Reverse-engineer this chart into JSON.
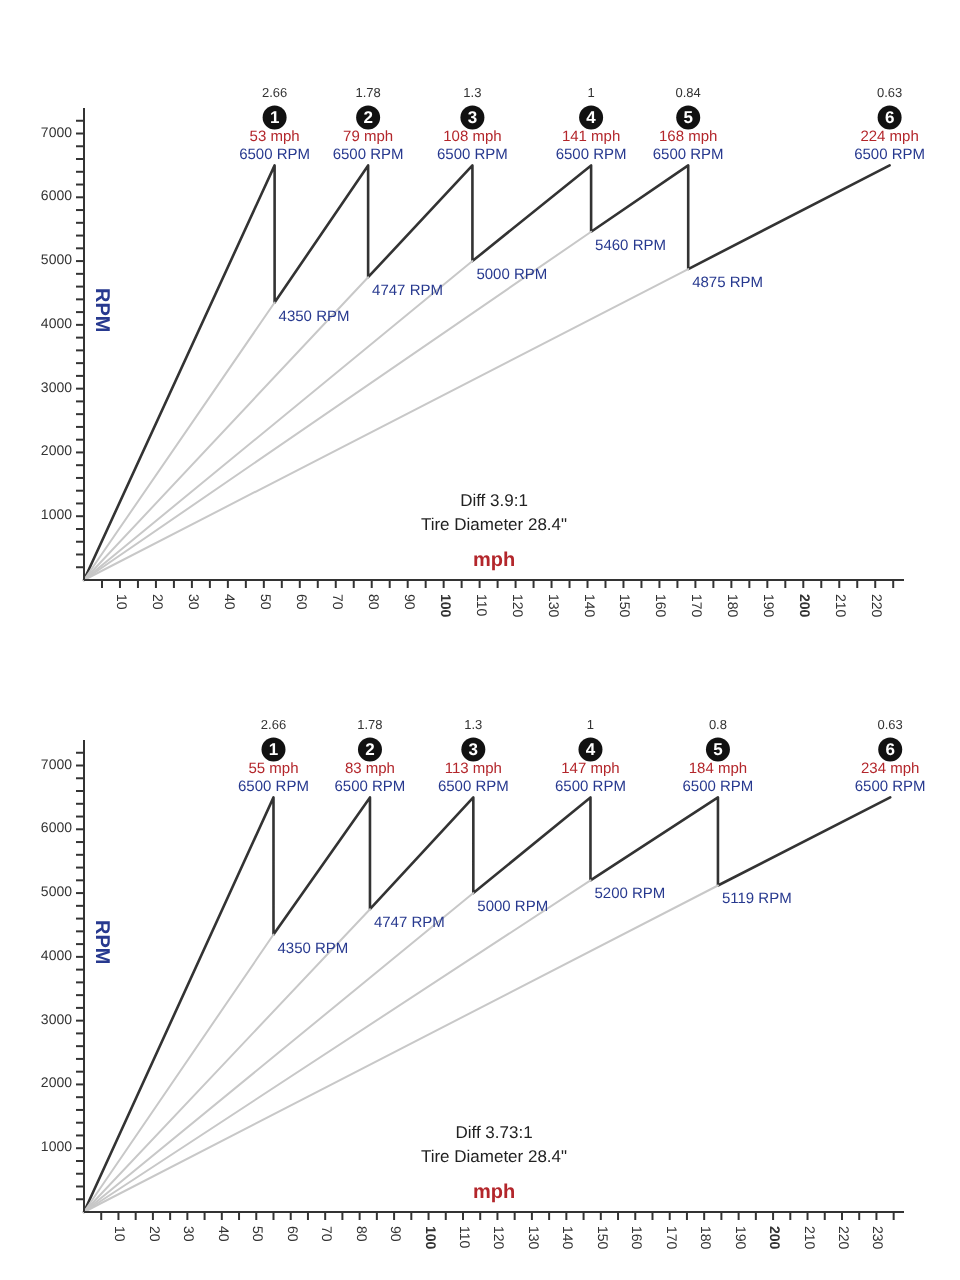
{
  "chart_data": [
    {
      "type": "line",
      "xlabel": "mph",
      "ylabel": "RPM",
      "xlim": [
        0,
        228
      ],
      "ylim": [
        0,
        7400
      ],
      "xticks": [
        {
          "value": 5,
          "label": null
        },
        10,
        {
          "value": 15,
          "label": null
        },
        20,
        {
          "value": 25,
          "label": null
        },
        30,
        {
          "value": 35,
          "label": null
        },
        40,
        {
          "value": 45,
          "label": null
        },
        50,
        {
          "value": 55,
          "label": null
        },
        60,
        {
          "value": 65,
          "label": null
        },
        70,
        {
          "value": 75,
          "label": null
        },
        80,
        {
          "value": 85,
          "label": null
        },
        90,
        {
          "value": 95,
          "label": null
        },
        100,
        {
          "value": 105,
          "label": null
        },
        110,
        {
          "value": 115,
          "label": null
        },
        120,
        {
          "value": 125,
          "label": null
        },
        130,
        {
          "value": 135,
          "label": null
        },
        140,
        {
          "value": 145,
          "label": null
        },
        150,
        {
          "value": 155,
          "label": null
        },
        160,
        {
          "value": 165,
          "label": null
        },
        170,
        {
          "value": 175,
          "label": null
        },
        180,
        {
          "value": 185,
          "label": null
        },
        190,
        {
          "value": 195,
          "label": null
        },
        200,
        {
          "value": 205,
          "label": null
        },
        210,
        {
          "value": 215,
          "label": null
        },
        220,
        {
          "value": 225,
          "label": null
        }
      ],
      "yticks": [
        {
          "value": 200,
          "label": null
        },
        {
          "value": 400,
          "label": null
        },
        {
          "value": 600,
          "label": null
        },
        {
          "value": 800,
          "label": null
        },
        1000,
        {
          "value": 1200,
          "label": null
        },
        {
          "value": 1400,
          "label": null
        },
        {
          "value": 1600,
          "label": null
        },
        {
          "value": 1800,
          "label": null
        },
        2000,
        {
          "value": 2200,
          "label": null
        },
        {
          "value": 2400,
          "label": null
        },
        {
          "value": 2600,
          "label": null
        },
        {
          "value": 2800,
          "label": null
        },
        3000,
        {
          "value": 3200,
          "label": null
        },
        {
          "value": 3400,
          "label": null
        },
        {
          "value": 3600,
          "label": null
        },
        {
          "value": 3800,
          "label": null
        },
        4000,
        {
          "value": 4200,
          "label": null
        },
        {
          "value": 4400,
          "label": null
        },
        {
          "value": 4600,
          "label": null
        },
        {
          "value": 4800,
          "label": null
        },
        5000,
        {
          "value": 5200,
          "label": null
        },
        {
          "value": 5400,
          "label": null
        },
        {
          "value": 5600,
          "label": null
        },
        {
          "value": 5800,
          "label": null
        },
        6000,
        {
          "value": 6200,
          "label": null
        },
        {
          "value": 6400,
          "label": null
        },
        {
          "value": 6600,
          "label": null
        },
        {
          "value": 6800,
          "label": null
        },
        7000,
        {
          "value": 7200,
          "label": null
        }
      ],
      "series": [
        {
          "color": "#333333",
          "x": [
            0,
            53,
            53,
            79,
            79,
            108,
            108,
            141,
            141,
            168,
            168,
            224
          ],
          "values": [
            0,
            6500,
            4350,
            6500,
            4747,
            6500,
            5000,
            6500,
            5460,
            6500,
            4875,
            6500
          ],
          "value_labels": [
            null,
            "6500 RPM",
            "4350 RPM",
            "6500 RPM",
            "4747 RPM",
            "6500 RPM",
            "5000 RPM",
            "6500 RPM",
            "5460 RPM",
            "6500 RPM",
            "4875 RPM",
            "6500 RPM"
          ]
        },
        {
          "color": "#c8c8c8",
          "x": [
            0,
            53
          ],
          "values": [
            0,
            4350
          ]
        },
        {
          "color": "#c8c8c8",
          "x": [
            0,
            79
          ],
          "values": [
            0,
            4747
          ]
        },
        {
          "color": "#c8c8c8",
          "x": [
            0,
            108
          ],
          "values": [
            0,
            5000
          ]
        },
        {
          "color": "#c8c8c8",
          "x": [
            0,
            141
          ],
          "values": [
            0,
            5460
          ]
        },
        {
          "color": "#c8c8c8",
          "x": [
            0,
            168
          ],
          "values": [
            0,
            4875
          ]
        }
      ],
      "annotations": [
        "2.66",
        {
          "text": "1",
          "x": 53,
          "y": 6500
        },
        {
          "text": "53 mph",
          "x": 53,
          "y": 6500
        },
        "1.78",
        {
          "text": "2",
          "x": 79,
          "y": 6500
        },
        {
          "text": "79 mph",
          "x": 79,
          "y": 6500
        },
        "1.3",
        {
          "text": "3",
          "x": 108,
          "y": 6500
        },
        {
          "text": "108 mph",
          "x": 108,
          "y": 6500
        },
        "1",
        {
          "text": "4",
          "x": 141,
          "y": 6500
        },
        {
          "text": "141 mph",
          "x": 141,
          "y": 6500
        },
        "0.84",
        {
          "text": "5",
          "x": 168,
          "y": 6500
        },
        {
          "text": "168 mph",
          "x": 168,
          "y": 6500
        },
        "0.63",
        {
          "text": "6",
          "x": 224,
          "y": 6500
        },
        {
          "text": "224 mph",
          "x": 224,
          "y": 6500
        },
        "Diff 3.9:1",
        "Tire Diameter 28.4\""
      ]
    },
    {
      "type": "line",
      "xlabel": "mph",
      "ylabel": "RPM",
      "xlim": [
        0,
        238
      ],
      "ylim": [
        0,
        7400
      ],
      "xticks": [
        {
          "value": 5,
          "label": null
        },
        10,
        {
          "value": 15,
          "label": null
        },
        20,
        {
          "value": 25,
          "label": null
        },
        30,
        {
          "value": 35,
          "label": null
        },
        40,
        {
          "value": 45,
          "label": null
        },
        50,
        {
          "value": 55,
          "label": null
        },
        60,
        {
          "value": 65,
          "label": null
        },
        70,
        {
          "value": 75,
          "label": null
        },
        80,
        {
          "value": 85,
          "label": null
        },
        90,
        {
          "value": 95,
          "label": null
        },
        100,
        {
          "value": 105,
          "label": null
        },
        110,
        {
          "value": 115,
          "label": null
        },
        120,
        {
          "value": 125,
          "label": null
        },
        130,
        {
          "value": 135,
          "label": null
        },
        140,
        {
          "value": 145,
          "label": null
        },
        150,
        {
          "value": 155,
          "label": null
        },
        160,
        {
          "value": 165,
          "label": null
        },
        170,
        {
          "value": 175,
          "label": null
        },
        180,
        {
          "value": 185,
          "label": null
        },
        190,
        {
          "value": 195,
          "label": null
        },
        200,
        {
          "value": 205,
          "label": null
        },
        210,
        {
          "value": 215,
          "label": null
        },
        220,
        {
          "value": 225,
          "label": null
        },
        230,
        {
          "value": 235,
          "label": null
        }
      ],
      "yticks": [
        {
          "value": 200,
          "label": null
        },
        {
          "value": 400,
          "label": null
        },
        {
          "value": 600,
          "label": null
        },
        {
          "value": 800,
          "label": null
        },
        1000,
        {
          "value": 1200,
          "label": null
        },
        {
          "value": 1400,
          "label": null
        },
        {
          "value": 1600,
          "label": null
        },
        {
          "value": 1800,
          "label": null
        },
        2000,
        {
          "value": 2200,
          "label": null
        },
        {
          "value": 2400,
          "label": null
        },
        {
          "value": 2600,
          "label": null
        },
        {
          "value": 2800,
          "label": null
        },
        3000,
        {
          "value": 3200,
          "label": null
        },
        {
          "value": 3400,
          "label": null
        },
        {
          "value": 3600,
          "label": null
        },
        {
          "value": 3800,
          "label": null
        },
        4000,
        {
          "value": 4200,
          "label": null
        },
        {
          "value": 4400,
          "label": null
        },
        {
          "value": 4600,
          "label": null
        },
        {
          "value": 4800,
          "label": null
        },
        5000,
        {
          "value": 5200,
          "label": null
        },
        {
          "value": 5400,
          "label": null
        },
        {
          "value": 5600,
          "label": null
        },
        {
          "value": 5800,
          "label": null
        },
        6000,
        {
          "value": 6200,
          "label": null
        },
        {
          "value": 6400,
          "label": null
        },
        {
          "value": 6600,
          "label": null
        },
        {
          "value": 6800,
          "label": null
        },
        7000,
        {
          "value": 7200,
          "label": null
        }
      ],
      "series": [
        {
          "color": "#333333",
          "x": [
            0,
            55,
            55,
            83,
            83,
            113,
            113,
            147,
            147,
            184,
            184,
            234
          ],
          "values": [
            0,
            6500,
            4350,
            6500,
            4747,
            6500,
            5000,
            6500,
            5200,
            6500,
            5119,
            6500
          ],
          "value_labels": [
            null,
            "6500 RPM",
            "4350 RPM",
            "6500 RPM",
            "4747 RPM",
            "6500 RPM",
            "5000 RPM",
            "6500 RPM",
            "5200 RPM",
            "6500 RPM",
            "5119 RPM",
            "6500 RPM"
          ]
        },
        {
          "color": "#c8c8c8",
          "x": [
            0,
            55
          ],
          "values": [
            0,
            4350
          ]
        },
        {
          "color": "#c8c8c8",
          "x": [
            0,
            83
          ],
          "values": [
            0,
            4747
          ]
        },
        {
          "color": "#c8c8c8",
          "x": [
            0,
            113
          ],
          "values": [
            0,
            5000
          ]
        },
        {
          "color": "#c8c8c8",
          "x": [
            0,
            147
          ],
          "values": [
            0,
            5200
          ]
        },
        {
          "color": "#c8c8c8",
          "x": [
            0,
            184
          ],
          "values": [
            0,
            5119
          ]
        }
      ],
      "annotations": [
        "2.66",
        {
          "text": "1",
          "x": 55,
          "y": 6500
        },
        {
          "text": "55 mph",
          "x": 55,
          "y": 6500
        },
        "1.78",
        {
          "text": "2",
          "x": 83,
          "y": 6500
        },
        {
          "text": "83 mph",
          "x": 83,
          "y": 6500
        },
        "1.3",
        {
          "text": "3",
          "x": 113,
          "y": 6500
        },
        {
          "text": "113 mph",
          "x": 113,
          "y": 6500
        },
        "1",
        {
          "text": "4",
          "x": 147,
          "y": 6500
        },
        {
          "text": "147 mph",
          "x": 147,
          "y": 6500
        },
        "0.8",
        {
          "text": "5",
          "x": 184,
          "y": 6500
        },
        {
          "text": "184 mph",
          "x": 184,
          "y": 6500
        },
        "0.63",
        {
          "text": "6",
          "x": 234,
          "y": 6500
        },
        {
          "text": "234 mph",
          "x": 234,
          "y": 6500
        },
        "Diff 3.73:1",
        "Tire Diameter 28.4\""
      ]
    }
  ]
}
